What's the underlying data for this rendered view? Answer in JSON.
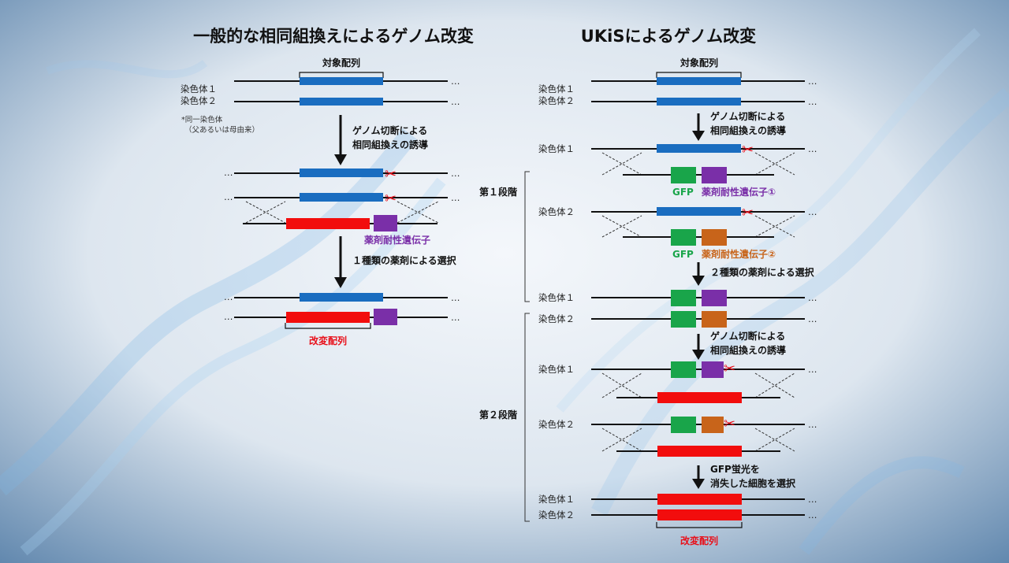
{
  "left": {
    "title": "一般的な相同組換えによるゲノム改変",
    "target_label": "対象配列",
    "chrom1": "染色体１",
    "chrom2": "染色体２",
    "note_line1": "*同一染色体",
    "note_line2": "（父あるいは母由来）",
    "step1_line1": "ゲノム切断による",
    "step1_line2": "相同組換えの誘導",
    "drug_gene": "薬剤耐性遺伝子",
    "step2": "１種類の薬剤による選択",
    "result": "改変配列"
  },
  "right": {
    "title": "UKiSによるゲノム改変",
    "target_label": "対象配列",
    "chrom1": "染色体１",
    "chrom2": "染色体２",
    "stage1": "第１段階",
    "stage2": "第２段階",
    "cut_line1": "ゲノム切断による",
    "cut_line2": "相同組換えの誘導",
    "gfp": "GFP",
    "drug_gene1": "薬剤耐性遺伝子①",
    "drug_gene2": "薬剤耐性遺伝子②",
    "step_select2": "２種類の薬剤による選択",
    "gfp_line1": "GFP蛍光を",
    "gfp_line2": "消失した細胞を選択",
    "result": "改変配列"
  },
  "common": {
    "dots": "…",
    "scissors": "✂"
  },
  "colors": {
    "blue": "#1a6dc0",
    "red": "#f20d0d",
    "purple": "#7a2fa8",
    "green": "#19a54a",
    "orange": "#c8641a"
  }
}
